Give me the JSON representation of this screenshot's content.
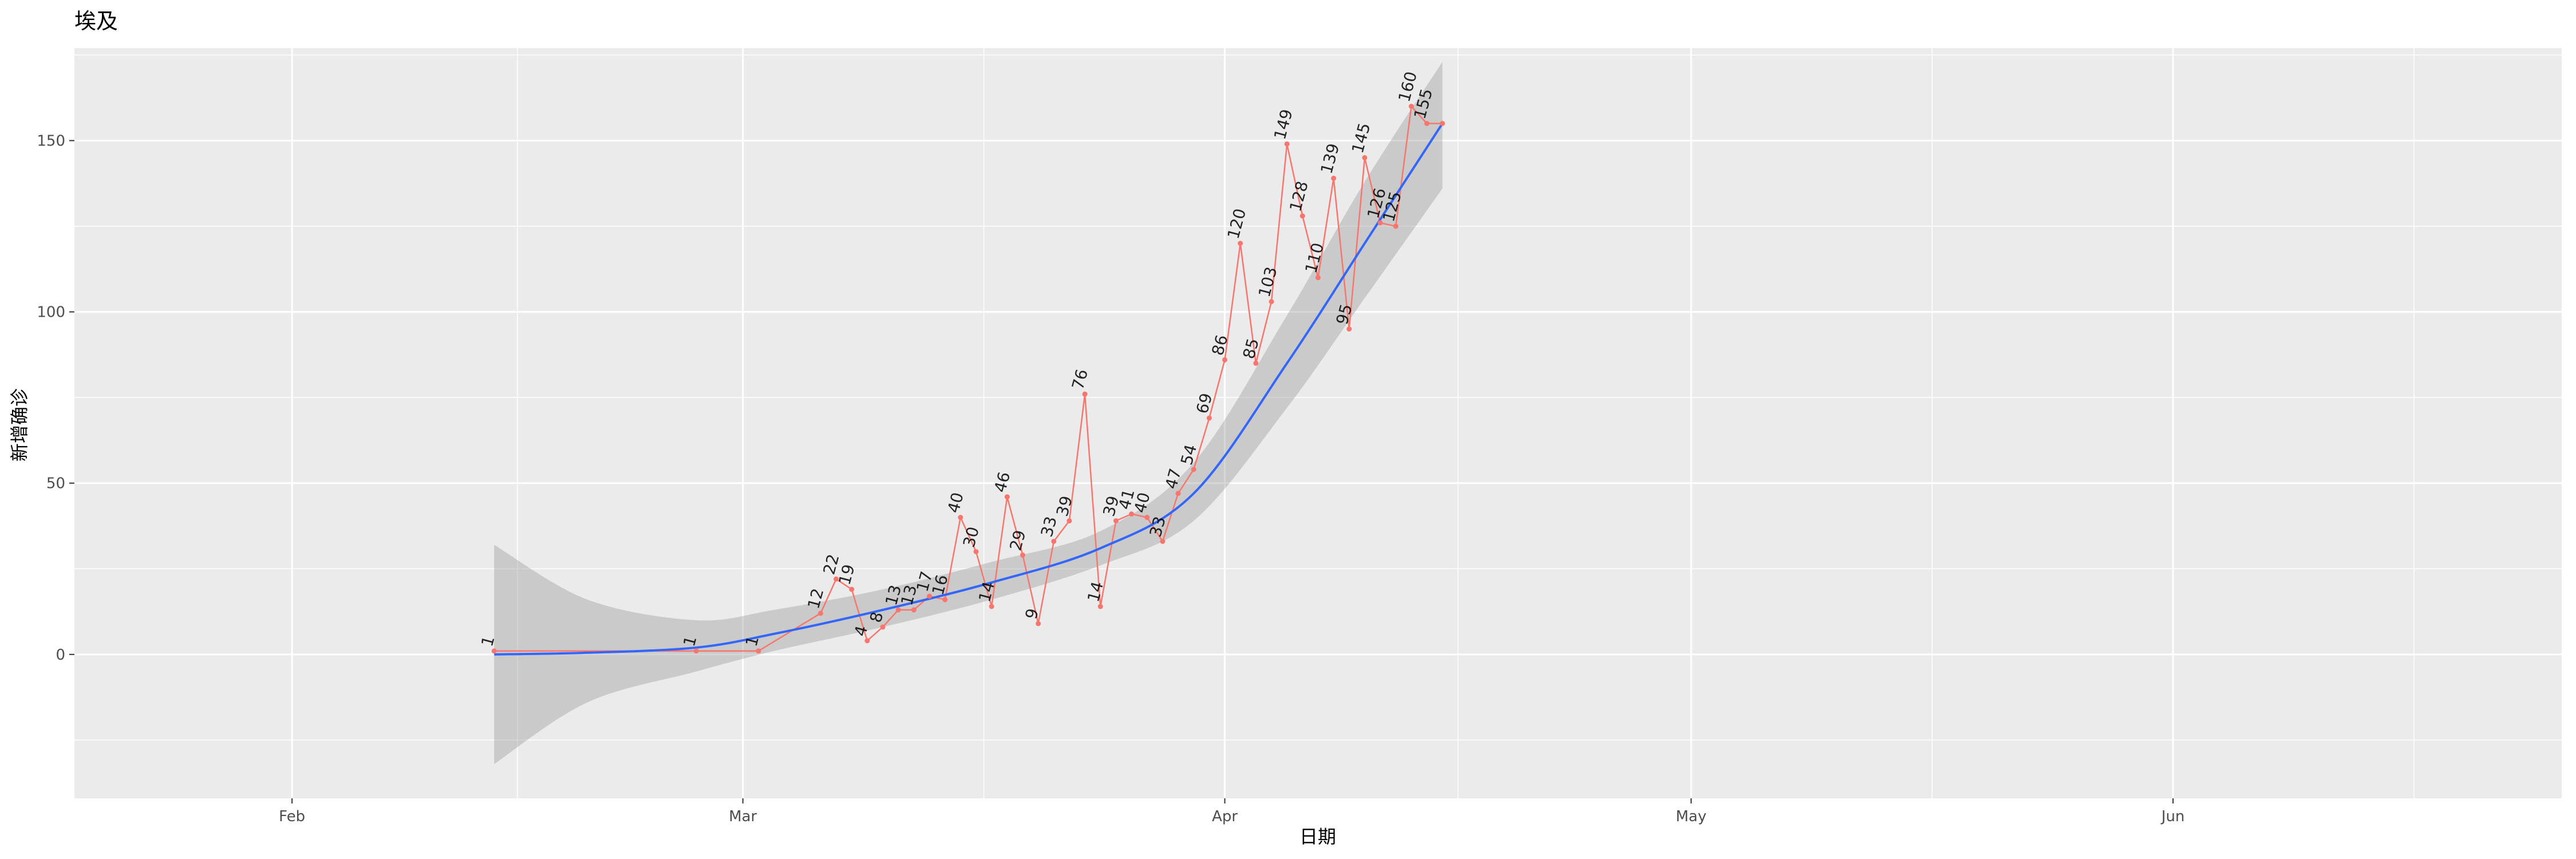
{
  "chart_data": {
    "type": "line",
    "title": "埃及",
    "xlabel": "日期",
    "ylabel": "新增确诊",
    "x_axis": {
      "type": "date",
      "range": [
        "2020-01-18",
        "2020-06-26"
      ],
      "ticks": [
        {
          "date": "2020-02-01",
          "label": "Feb"
        },
        {
          "date": "2020-03-01",
          "label": "Mar"
        },
        {
          "date": "2020-04-01",
          "label": "Apr"
        },
        {
          "date": "2020-05-01",
          "label": "May"
        },
        {
          "date": "2020-06-01",
          "label": "Jun"
        }
      ]
    },
    "y_axis": {
      "range": [
        -42,
        177
      ],
      "ticks": [
        0,
        50,
        100,
        150
      ],
      "tick_labels": [
        "0",
        "50",
        "100",
        "150"
      ]
    },
    "grid": true,
    "legend": "none",
    "colors": {
      "panel": "#EBEBEB",
      "grid": "#FFFFFF",
      "line": "#F8766D",
      "smooth": "#3366FF",
      "ribbon": "#999999"
    },
    "series": [
      {
        "x": [
          "2020-02-14",
          "2020-02-27",
          "2020-03-02",
          "2020-03-06",
          "2020-03-07",
          "2020-03-08",
          "2020-03-09",
          "2020-03-10",
          "2020-03-11",
          "2020-03-12",
          "2020-03-13",
          "2020-03-14",
          "2020-03-15",
          "2020-03-16",
          "2020-03-17",
          "2020-03-18",
          "2020-03-19",
          "2020-03-20",
          "2020-03-21",
          "2020-03-22",
          "2020-03-23",
          "2020-03-24",
          "2020-03-25",
          "2020-03-26",
          "2020-03-27",
          "2020-03-28",
          "2020-03-29",
          "2020-03-30",
          "2020-03-31",
          "2020-04-01",
          "2020-04-02",
          "2020-04-03",
          "2020-04-04",
          "2020-04-05",
          "2020-04-06",
          "2020-04-07",
          "2020-04-08",
          "2020-04-09",
          "2020-04-10",
          "2020-04-11",
          "2020-04-12",
          "2020-04-13",
          "2020-04-14",
          "2020-04-15"
        ],
        "values": [
          1,
          1,
          1,
          12,
          22,
          19,
          4,
          8,
          13,
          13,
          17,
          16,
          40,
          30,
          14,
          46,
          29,
          9,
          33,
          39,
          76,
          14,
          39,
          41,
          40,
          33,
          47,
          54,
          69,
          86,
          120,
          85,
          103,
          149,
          128,
          110,
          139,
          95,
          145,
          126,
          125,
          160,
          155,
          155
        ],
        "labels": [
          "1",
          "1",
          "1",
          "12",
          "22",
          "19",
          "4",
          "8",
          "13",
          "13",
          "17",
          "16",
          "40",
          "30",
          "14",
          "46",
          "29",
          "9",
          "33",
          "39",
          "76",
          "14",
          "39",
          "41",
          "40",
          "33",
          "47",
          "54",
          "69",
          "86",
          "120",
          "85",
          "103",
          "149",
          "128",
          "110",
          "139",
          "95",
          "145",
          "126",
          "125",
          "160",
          "155",
          ""
        ]
      }
    ],
    "smooth": {
      "x": [
        "2020-02-14",
        "2020-02-20",
        "2020-02-27",
        "2020-03-03",
        "2020-03-10",
        "2020-03-17",
        "2020-03-24",
        "2020-03-30",
        "2020-04-05",
        "2020-04-10",
        "2020-04-15"
      ],
      "y": [
        0,
        0.5,
        2,
        6,
        13,
        21,
        31,
        47,
        85,
        120,
        155
      ],
      "lower": [
        -32,
        -14,
        -5,
        1,
        8,
        16,
        26,
        39,
        72,
        104,
        136
      ],
      "upper": [
        32,
        16,
        10,
        13,
        19,
        27,
        36,
        56,
        99,
        138,
        173
      ]
    }
  }
}
